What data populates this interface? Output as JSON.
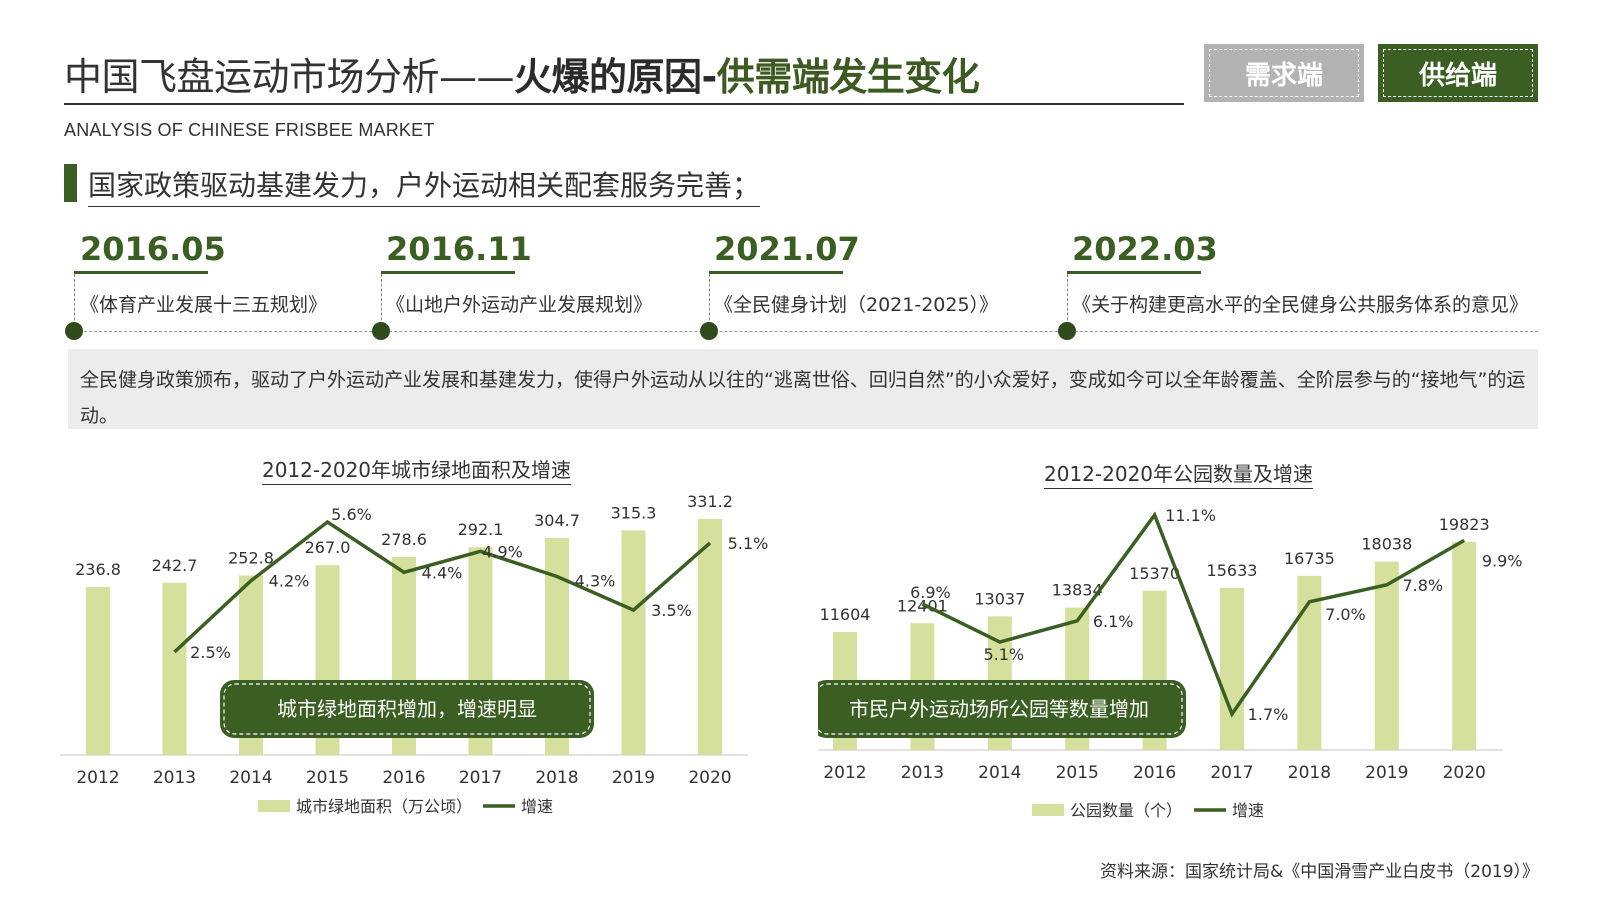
{
  "header": {
    "title_part1": "中国飞盘运动市场分析——",
    "title_part2": "火爆的原因-",
    "title_part3": "供需端发生变化",
    "subtitle": "ANALYSIS OF CHINESE FRISBEE MARKET",
    "btn_demand": "需求端",
    "btn_supply": "供给端"
  },
  "colors": {
    "accent": "#3b5e22",
    "bar": "#d4e09b",
    "line": "#3b5e22"
  },
  "section_heading": "国家政策驱动基建发力，户外运动相关配套服务完善；",
  "timeline": [
    {
      "year": "2016.05",
      "doc": "《体育产业发展十三五规划》"
    },
    {
      "year": "2016.11",
      "doc": "《山地户外运动产业发展规划》"
    },
    {
      "year": "2021.07",
      "doc": "《全民健身计划（2021-2025）》"
    },
    {
      "year": "2022.03",
      "doc": "《关于构建更高水平的全民健身公共服务体系的意见》"
    }
  ],
  "description": "全民健身政策颁布，驱动了户外运动产业发展和基建发力，使得户外运动从以往的“逃离世俗、回归自然”的小众爱好，变成如今可以全年龄覆盖、全阶层参与的“接地气”的运动。",
  "chart_data": [
    {
      "type": "bar",
      "title": "2012-2020年城市绿地面积及增速",
      "categories": [
        "2012",
        "2013",
        "2014",
        "2015",
        "2016",
        "2017",
        "2018",
        "2019",
        "2020"
      ],
      "series": [
        {
          "name": "城市绿地面积（万公顷）",
          "kind": "bar",
          "values": [
            236.8,
            242.7,
            252.8,
            267.0,
            278.6,
            292.1,
            304.7,
            315.3,
            331.2
          ],
          "labels": [
            "236.8",
            "242.7",
            "252.8",
            "267.0",
            "278.6",
            "292.1",
            "304.7",
            "315.3",
            "331.2"
          ]
        },
        {
          "name": "增速",
          "kind": "line",
          "values": [
            null,
            2.5,
            4.2,
            5.6,
            4.4,
            4.9,
            4.3,
            3.5,
            5.1
          ],
          "labels": [
            "",
            "2.5%",
            "4.2%",
            "5.6%",
            "4.4%",
            "4.9%",
            "4.3%",
            "3.5%",
            "5.1%"
          ]
        }
      ],
      "legend_position": "bottom",
      "callout": "城市绿地面积增加，增速明显"
    },
    {
      "type": "bar",
      "title": "2012-2020年公园数量及增速",
      "categories": [
        "2012",
        "2013",
        "2014",
        "2015",
        "2016",
        "2017",
        "2018",
        "2019",
        "2020"
      ],
      "series": [
        {
          "name": "公园数量（个）",
          "kind": "bar",
          "values": [
            11604,
            12401,
            13037,
            13834,
            15370,
            15633,
            16735,
            18038,
            19823
          ],
          "labels": [
            "11604",
            "12401",
            "13037",
            "13834",
            "15370",
            "15633",
            "16735",
            "18038",
            "19823"
          ]
        },
        {
          "name": "增速",
          "kind": "line",
          "values": [
            null,
            6.9,
            5.1,
            6.1,
            11.1,
            1.7,
            7.0,
            7.8,
            9.9
          ],
          "labels": [
            "",
            "6.9%",
            "5.1%",
            "6.1%",
            "11.1%",
            "1.7%",
            "7.0%",
            "7.8%",
            "9.9%"
          ]
        }
      ],
      "legend_position": "bottom",
      "callout": "市民户外运动场所公园等数量增加"
    }
  ],
  "source": "资料来源：国家统计局&《中国滑雪产业白皮书（2019）》"
}
